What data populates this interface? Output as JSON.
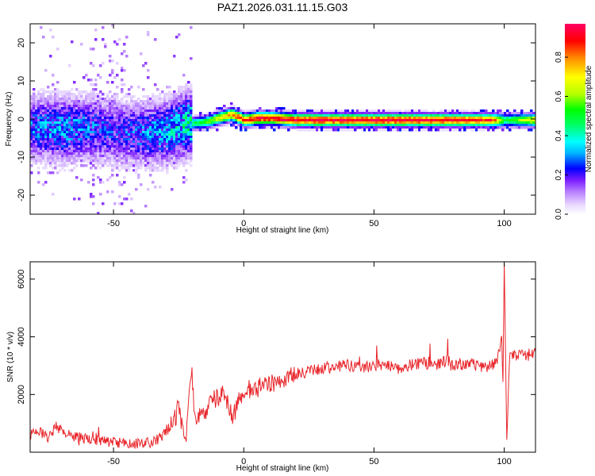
{
  "title": "PAZ1.2026.031.11.15.G03",
  "chart_data": [
    {
      "type": "heatmap",
      "title": "PAZ1.2026.031.11.15.G03",
      "xlabel": "Height of straight line (km)",
      "ylabel": "Frequency (Hz)",
      "xlim": [
        -82,
        112
      ],
      "ylim": [
        -25,
        25
      ],
      "xticks": [
        -50,
        0,
        50,
        100
      ],
      "yticks": [
        -20,
        -10,
        0,
        10,
        20
      ],
      "colorbar": {
        "label": "Normalized spectral amplitude",
        "range": [
          0.0,
          0.97
        ],
        "ticks": [
          0.0,
          0.2,
          0.4,
          0.6,
          0.8
        ],
        "colors": [
          "#ffffff",
          "#e8d8ff",
          "#b67cff",
          "#7a1cff",
          "#0000ff",
          "#00b4ff",
          "#00ffff",
          "#00ff64",
          "#00ff00",
          "#b4ff00",
          "#ffff00",
          "#ff8c00",
          "#ff0000",
          "#ff0064"
        ]
      },
      "ridge": {
        "x": [
          -82,
          -70,
          -60,
          -50,
          -40,
          -30,
          -22,
          -15,
          -10,
          -5,
          0,
          5,
          10,
          20,
          40,
          60,
          80,
          95,
          100,
          112
        ],
        "frequency": [
          -2,
          -2.5,
          -2,
          -3,
          -3.5,
          -3,
          -1,
          -0.5,
          0.5,
          1.5,
          0,
          0.5,
          0.5,
          0,
          0,
          0,
          0,
          0,
          0,
          0
        ],
        "amplitude": [
          0.3,
          0.35,
          0.3,
          0.25,
          0.3,
          0.35,
          0.45,
          0.55,
          0.7,
          0.85,
          0.9,
          0.95,
          0.95,
          0.97,
          0.97,
          0.97,
          0.95,
          0.9,
          0.5,
          0.75
        ]
      }
    },
    {
      "type": "line",
      "xlabel": "Height of straight line (km)",
      "ylabel": "SNR (10 * v/v)",
      "xlim": [
        -82,
        112
      ],
      "ylim": [
        0,
        6600
      ],
      "xticks": [
        -50,
        0,
        50,
        100
      ],
      "yticks": [
        2000,
        4000,
        6000
      ],
      "series": [
        {
          "name": "SNR",
          "color": "#e8262b",
          "x": [
            -82,
            -78,
            -75,
            -72,
            -68,
            -65,
            -60,
            -55,
            -50,
            -45,
            -40,
            -35,
            -32,
            -30,
            -28,
            -26,
            -25,
            -24,
            -22,
            -21,
            -20,
            -19,
            -18,
            -16,
            -15,
            -14,
            -12,
            -10,
            -8,
            -6,
            -5,
            -4,
            -2,
            0,
            2,
            5,
            8,
            10,
            12,
            15,
            20,
            25,
            30,
            35,
            40,
            45,
            50,
            55,
            60,
            65,
            70,
            75,
            78,
            80,
            85,
            90,
            95,
            97,
            98,
            99,
            99.5,
            100,
            101,
            102,
            105,
            108,
            112
          ],
          "y": [
            600,
            700,
            500,
            900,
            650,
            550,
            450,
            400,
            350,
            300,
            300,
            350,
            500,
            700,
            1000,
            1200,
            1700,
            1100,
            600,
            2400,
            2900,
            1500,
            900,
            1600,
            1400,
            1500,
            1800,
            1900,
            2000,
            1700,
            1400,
            1200,
            1900,
            2100,
            2100,
            2200,
            2300,
            2400,
            2400,
            2500,
            2700,
            2800,
            2900,
            2950,
            3000,
            2950,
            3000,
            3050,
            2900,
            3050,
            3100,
            3000,
            3200,
            3000,
            3050,
            3000,
            3000,
            3100,
            3400,
            4200,
            2200,
            6600,
            300,
            3300,
            3400,
            3350,
            3400
          ]
        }
      ]
    }
  ]
}
